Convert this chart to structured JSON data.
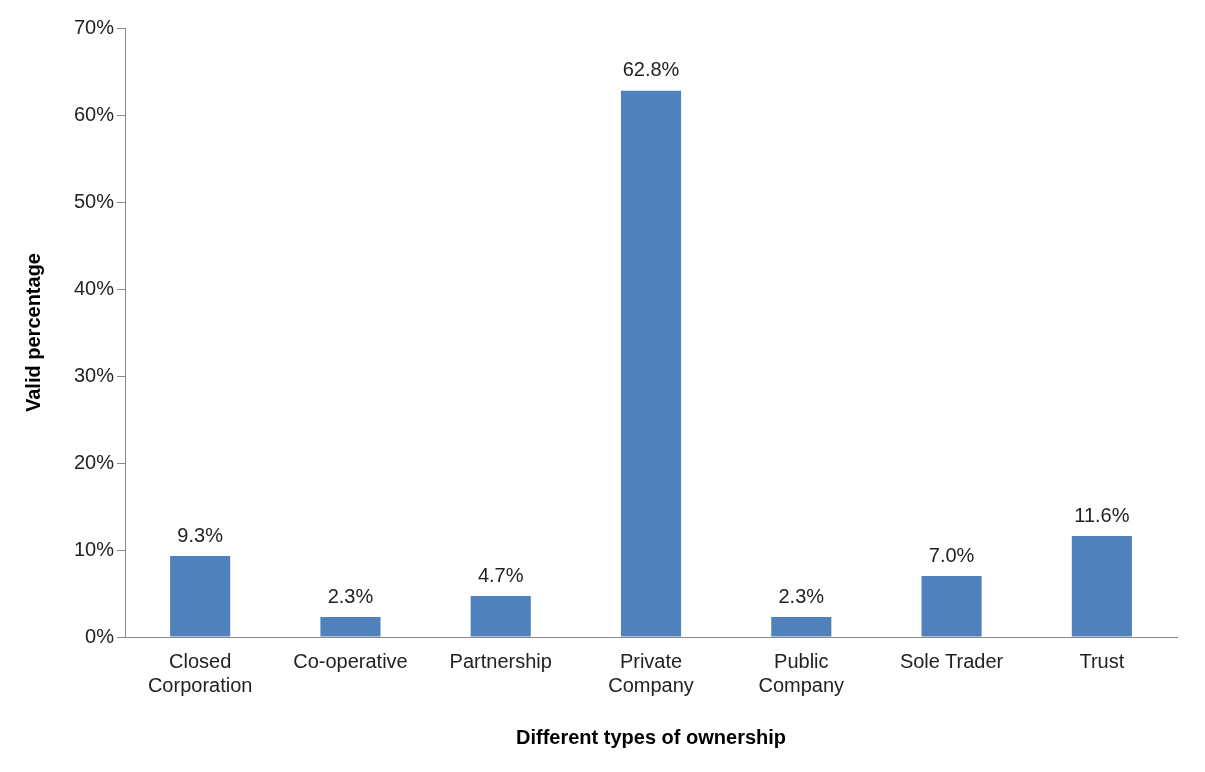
{
  "chart_data": {
    "type": "bar",
    "xlabel": "Different types of ownership",
    "ylabel": "Valid percentage",
    "categories": [
      "Closed Corporation",
      "Co-operative",
      "Partnership",
      "Private Company",
      "Public Company",
      "Sole Trader",
      "Trust"
    ],
    "series": [
      {
        "color": "#4f81bd",
        "values": [
          9.3,
          2.3,
          4.7,
          62.8,
          2.3,
          7.0,
          11.6
        ],
        "value_labels": [
          "9.3%",
          "2.3%",
          "4.7%",
          "62.8%",
          "2.3%",
          "7.0%",
          "11.6%"
        ]
      }
    ],
    "ylim": [
      0,
      70
    ],
    "yticks": [
      {
        "value": 0,
        "label": "0%"
      },
      {
        "value": 10,
        "label": "10%"
      },
      {
        "value": 20,
        "label": "20%"
      },
      {
        "value": 30,
        "label": "30%"
      },
      {
        "value": 40,
        "label": "40%"
      },
      {
        "value": 50,
        "label": "50%"
      },
      {
        "value": 60,
        "label": "60%"
      },
      {
        "value": 70,
        "label": "70%"
      }
    ],
    "grid": false,
    "legend": false
  }
}
